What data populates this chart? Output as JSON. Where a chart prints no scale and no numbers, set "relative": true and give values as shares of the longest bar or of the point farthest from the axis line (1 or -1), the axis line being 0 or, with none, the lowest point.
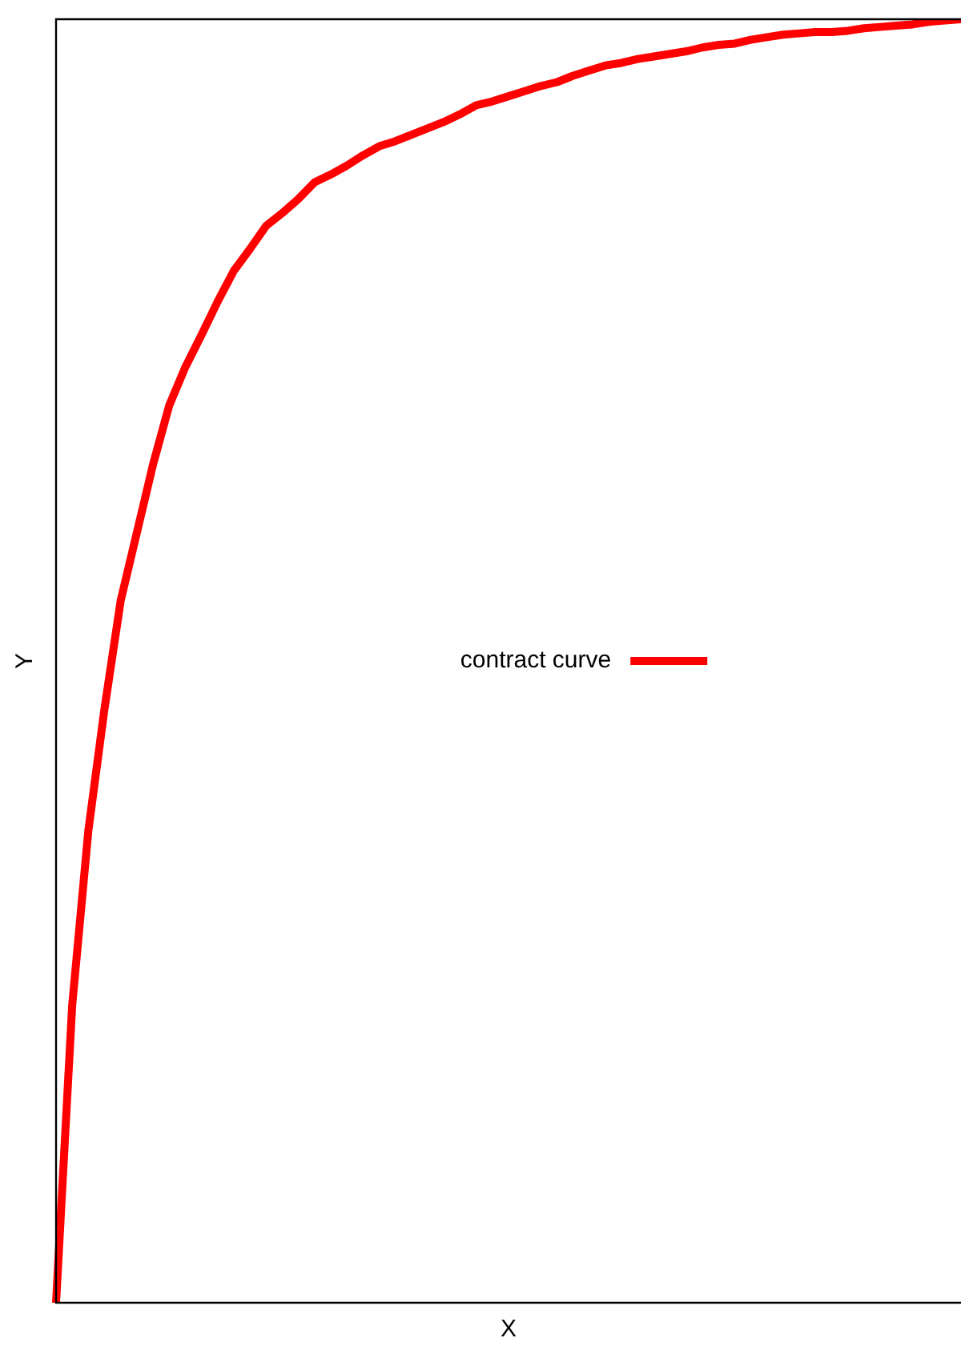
{
  "chart_data": {
    "type": "line",
    "xlabel": "X",
    "ylabel": "Y",
    "relative": true,
    "legend": "center",
    "marker": "none",
    "line_style": "solid",
    "categories": [
      null,
      null,
      null,
      null,
      null,
      null,
      null,
      null,
      null,
      null,
      null,
      null,
      null,
      null,
      null,
      null,
      null,
      null,
      null,
      null,
      null,
      null,
      null,
      null,
      null,
      null,
      null,
      null,
      null,
      null,
      null,
      null,
      null,
      null,
      null,
      null,
      null,
      null,
      null,
      null,
      null,
      null,
      null,
      null,
      null,
      null,
      null,
      null,
      null,
      null,
      null,
      null,
      null,
      null,
      null,
      null,
      null
    ],
    "series": [
      {
        "name": "contract curve",
        "color": "#ff0000",
        "values": [
          0,
          0.232,
          0.368,
          0.463,
          0.547,
          0.6,
          0.653,
          0.699,
          0.729,
          0.754,
          0.78,
          0.804,
          0.821,
          0.839,
          0.849,
          0.86,
          0.873,
          0.879,
          0.886,
          0.894,
          0.901,
          0.905,
          0.91,
          0.915,
          0.92,
          0.926,
          0.933,
          0.936,
          0.94,
          0.944,
          0.948,
          0.951,
          0.956,
          0.96,
          0.964,
          0.966,
          0.969,
          0.971,
          0.973,
          0.975,
          0.978,
          0.98,
          0.981,
          0.984,
          0.986,
          0.988,
          0.989,
          0.99,
          0.99,
          0.991,
          0.993,
          0.994,
          0.995,
          0.996,
          0.998,
          0.999,
          1
        ]
      }
    ]
  }
}
